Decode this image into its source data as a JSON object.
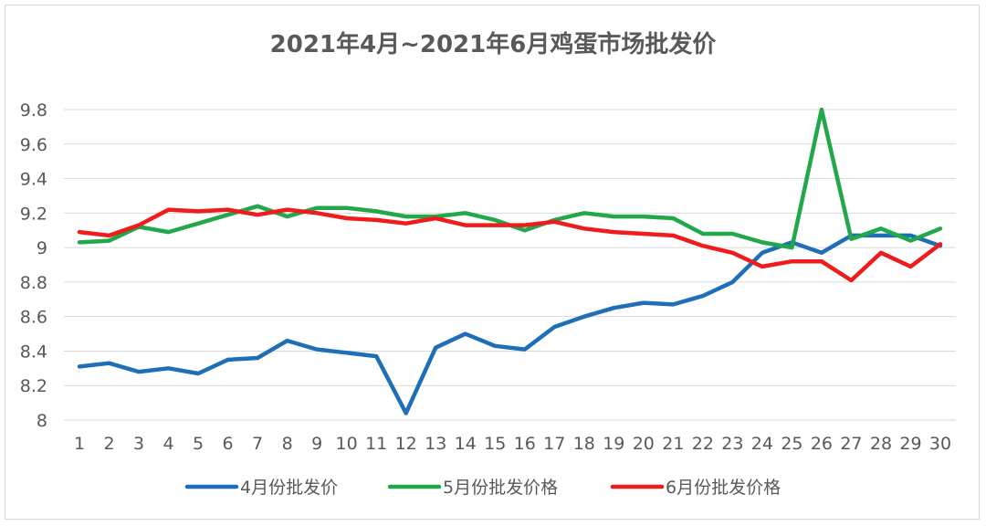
{
  "chart_data": {
    "type": "line",
    "title": "2021年4月~2021年6月鸡蛋市场批发价",
    "xlabel": "",
    "ylabel": "",
    "categories": [
      "1",
      "2",
      "3",
      "4",
      "5",
      "6",
      "7",
      "8",
      "9",
      "10",
      "11",
      "12",
      "13",
      "14",
      "15",
      "16",
      "17",
      "18",
      "19",
      "20",
      "21",
      "22",
      "23",
      "24",
      "25",
      "26",
      "27",
      "28",
      "29",
      "30"
    ],
    "ylim": [
      8,
      9.8
    ],
    "yticks": [
      "8",
      "8.2",
      "8.4",
      "8.6",
      "8.8",
      "9",
      "9.2",
      "9.4",
      "9.6",
      "9.8"
    ],
    "grid": true,
    "legend_position": "bottom",
    "series": [
      {
        "name": "4月份批发价",
        "color": "#1f6fb8",
        "values": [
          8.31,
          8.33,
          8.28,
          8.3,
          8.27,
          8.35,
          8.36,
          8.46,
          8.41,
          8.39,
          8.37,
          8.04,
          8.42,
          8.5,
          8.43,
          8.41,
          8.54,
          8.6,
          8.65,
          8.68,
          8.67,
          8.72,
          8.8,
          8.97,
          9.03,
          8.97,
          9.07,
          9.07,
          9.07,
          9.01
        ]
      },
      {
        "name": "5月份批发价格",
        "color": "#22a84b",
        "values": [
          9.03,
          9.04,
          9.12,
          9.09,
          9.14,
          9.19,
          9.24,
          9.18,
          9.23,
          9.23,
          9.21,
          9.18,
          9.18,
          9.2,
          9.16,
          9.1,
          9.16,
          9.2,
          9.18,
          9.18,
          9.17,
          9.08,
          9.08,
          9.03,
          9.0,
          9.8,
          9.05,
          9.11,
          9.04,
          9.11
        ]
      },
      {
        "name": "6月份批发价格",
        "color": "#ee1c1c",
        "values": [
          9.09,
          9.07,
          9.13,
          9.22,
          9.21,
          9.22,
          9.19,
          9.22,
          9.2,
          9.17,
          9.16,
          9.14,
          9.17,
          9.13,
          9.13,
          9.13,
          9.15,
          9.11,
          9.09,
          9.08,
          9.07,
          9.01,
          8.97,
          8.89,
          8.92,
          8.92,
          8.81,
          8.97,
          8.89,
          9.02
        ]
      }
    ]
  }
}
